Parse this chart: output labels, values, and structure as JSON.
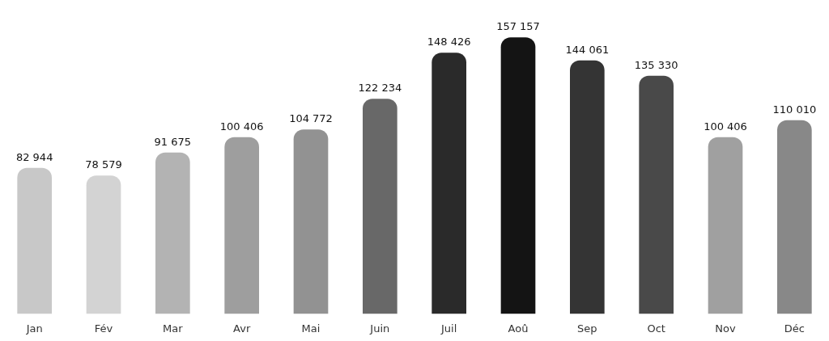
{
  "chart_data": {
    "type": "bar",
    "categories": [
      "Jan",
      "Fév",
      "Mar",
      "Avr",
      "Mai",
      "Juin",
      "Juil",
      "Aoû",
      "Sep",
      "Oct",
      "Nov",
      "Déc"
    ],
    "values": [
      82944,
      78579,
      91675,
      100406,
      104772,
      122234,
      148426,
      157157,
      144061,
      135330,
      100406,
      110010
    ],
    "value_labels": [
      "82 944",
      "78 579",
      "91 675",
      "100 406",
      "104 772",
      "122 234",
      "148 426",
      "157 157",
      "144 061",
      "135 330",
      "100 406",
      "110 010"
    ],
    "colors": [
      "#c8c8c8",
      "#d3d3d3",
      "#b3b3b3",
      "#9e9e9e",
      "#929292",
      "#686868",
      "#2a2a2a",
      "#141414",
      "#343434",
      "#494949",
      "#a0a0a0",
      "#888888"
    ],
    "tick_labels": "x",
    "grid": false,
    "legend": false
  }
}
